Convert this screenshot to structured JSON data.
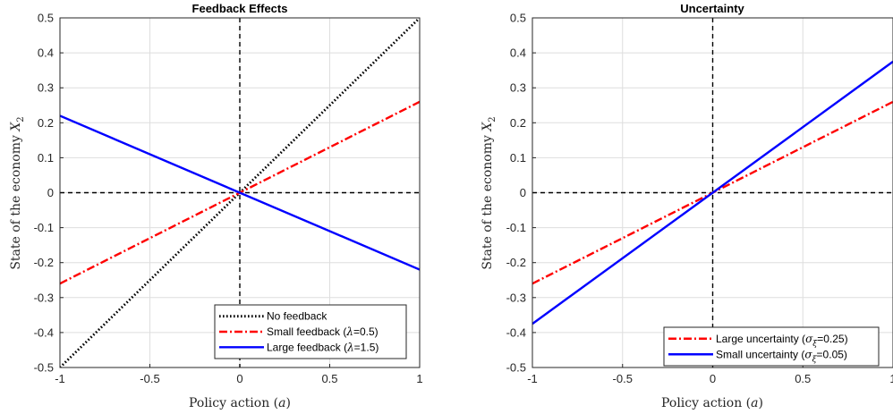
{
  "chart_data": [
    {
      "type": "line",
      "title": "Feedback Effects",
      "xlabel": "Policy action (a)",
      "ylabel": "State of the economy X_2",
      "xlim": [
        -1,
        1
      ],
      "ylim": [
        -0.5,
        0.5
      ],
      "xticks": [
        "-1",
        "-0.5",
        "0",
        "0.5",
        "1"
      ],
      "yticks": [
        "0.5",
        "0.4",
        "0.3",
        "0.2",
        "0.1",
        "0",
        "-0.1",
        "-0.2",
        "-0.3",
        "-0.4",
        "-0.5"
      ],
      "grid": true,
      "reference_lines": [
        "x=0",
        "y=0"
      ],
      "legend_position": "bottom-right",
      "series": [
        {
          "name": "No feedback",
          "x": [
            -1,
            1
          ],
          "y": [
            -0.5,
            0.5
          ],
          "color": "#000000",
          "style": "dotted"
        },
        {
          "name": "Small feedback (λ=0.5)",
          "x": [
            -1,
            1
          ],
          "y": [
            -0.26,
            0.26
          ],
          "color": "#ff0000",
          "style": "dashdot"
        },
        {
          "name": "Large feedback (λ=1.5)",
          "x": [
            -1,
            1
          ],
          "y": [
            0.22,
            -0.22
          ],
          "color": "#0000ff",
          "style": "solid"
        }
      ]
    },
    {
      "type": "line",
      "title": "Uncertainty",
      "xlabel": "Policy action (a)",
      "ylabel": "State of the economy X_2",
      "xlim": [
        -1,
        1
      ],
      "ylim": [
        -0.5,
        0.5
      ],
      "xticks": [
        "-1",
        "-0.5",
        "0",
        "0.5",
        "1"
      ],
      "yticks": [
        "0.5",
        "0.4",
        "0.3",
        "0.2",
        "0.1",
        "0",
        "-0.1",
        "-0.2",
        "-0.3",
        "-0.4",
        "-0.5"
      ],
      "grid": true,
      "reference_lines": [
        "x=0",
        "y=0"
      ],
      "legend_position": "bottom-right",
      "series": [
        {
          "name": "Large uncertainty (σ_ξ=0.25)",
          "x": [
            -1,
            1
          ],
          "y": [
            -0.26,
            0.26
          ],
          "color": "#ff0000",
          "style": "dashdot"
        },
        {
          "name": "Small uncertainty (σ_ξ=0.05)",
          "x": [
            -1,
            1
          ],
          "y": [
            -0.375,
            0.375
          ],
          "color": "#0000ff",
          "style": "solid"
        }
      ]
    }
  ]
}
